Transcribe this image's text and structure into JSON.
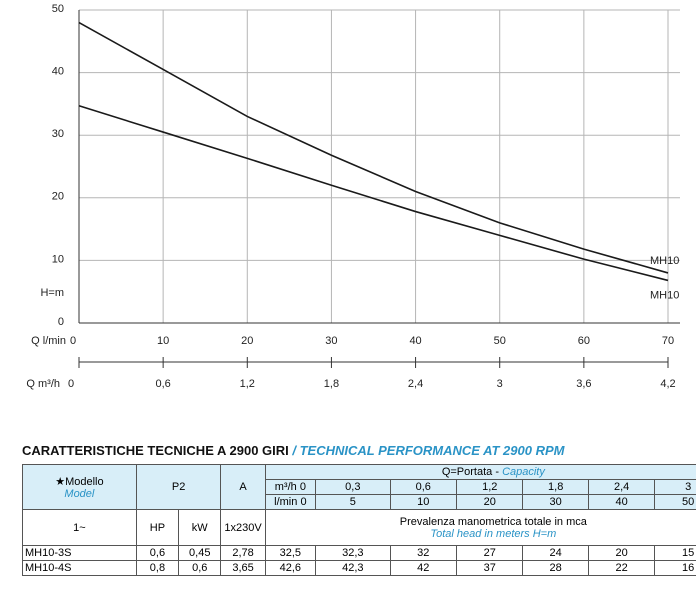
{
  "chart_data": {
    "type": "line",
    "x": [
      0,
      10,
      20,
      30,
      40,
      50,
      60,
      70
    ],
    "series": [
      {
        "name": "MH10",
        "color": "#1a1a1a",
        "values": [
          48,
          40.5,
          33,
          26.8,
          21,
          16,
          11.8,
          8
        ]
      },
      {
        "name": "MH10",
        "color": "#1a1a1a",
        "values": [
          34.7,
          30.5,
          26.3,
          22,
          17.8,
          14,
          10.2,
          6.8
        ]
      }
    ],
    "xlim": [
      0,
      70
    ],
    "xticks": [
      0,
      10,
      20,
      30,
      40,
      50,
      60,
      70
    ],
    "ylim": [
      0,
      50
    ],
    "yticks": [
      0,
      10,
      20,
      30,
      40,
      50
    ],
    "x_label": "Q l/min",
    "y_label": "H=m",
    "x2_label": "Q m³/h",
    "x2ticks": [
      0,
      {
        "value": 0.6,
        "label": "0,6"
      },
      {
        "value": 1.2,
        "label": "1,2"
      },
      {
        "value": 1.8,
        "label": "1,8"
      },
      {
        "value": 2.4,
        "label": "2,4"
      },
      3,
      {
        "value": 3.6,
        "label": "3,6"
      },
      {
        "value": 4.2,
        "label": "4,2"
      }
    ],
    "x2lim": [
      0,
      4.2
    ],
    "grid": true
  },
  "table": {
    "title": "CARATTERISTICHE TECNICHE A 2900 GIRI",
    "title_en": " / TECHNICAL PERFORMANCE AT 2900 RPM",
    "model": "★Modello",
    "model_en": "Model",
    "p2": "P2",
    "amp": "A",
    "capacity": "Q=Portata - ",
    "capacity_en": "Capacity",
    "m3h": [
      "m³/h",
      "0",
      "0,3",
      "0,6",
      "1,2",
      "1,8",
      "2,4",
      "3"
    ],
    "lmin": [
      "l/min",
      "0",
      "5",
      "10",
      "20",
      "30",
      "40",
      "50"
    ],
    "units": [
      "1~",
      "HP",
      "kW",
      "1x230V"
    ],
    "head": "Prevalenza manometrica totale in mca",
    "head_en": "Total head in meters H=m",
    "rows": [
      [
        "MH10-3S",
        "0,6",
        "0,45",
        "2,78",
        "32,5",
        "32,3",
        "32",
        "27",
        "24",
        "20",
        "15"
      ],
      [
        "MH10-4S",
        "0,8",
        "0,6",
        "3,65",
        "42,6",
        "42,3",
        "42",
        "37",
        "28",
        "22",
        "16"
      ]
    ]
  }
}
